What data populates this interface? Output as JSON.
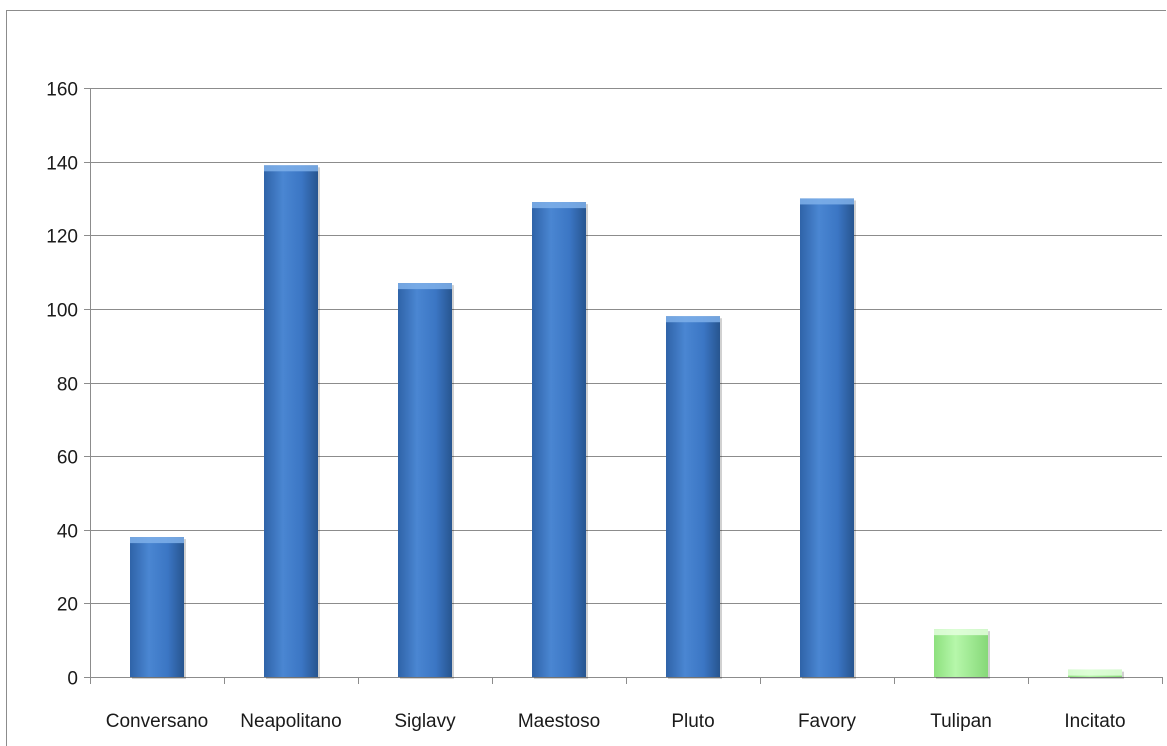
{
  "chart_data": {
    "type": "bar",
    "title": "",
    "xlabel": "",
    "ylabel": "",
    "categories": [
      "Conversano",
      "Neapolitano",
      "Siglavy",
      "Maestoso",
      "Pluto",
      "Favory",
      "Tulipan",
      "Incitato"
    ],
    "values": [
      38,
      139,
      107,
      129,
      98,
      130,
      13,
      2
    ],
    "bar_colors": [
      "blue",
      "blue",
      "blue",
      "blue",
      "blue",
      "blue",
      "green",
      "green"
    ],
    "ylim": [
      0,
      160
    ],
    "yticks": [
      0,
      20,
      40,
      60,
      80,
      100,
      120,
      140,
      160
    ],
    "grid": true,
    "legend": "none"
  },
  "colors": {
    "blue_top": "#6fa3e0",
    "blue_mid": "#3d7ac8",
    "blue_bottom": "#2b5c9e",
    "green_top": "#d8ffd0",
    "green_mid": "#a8f29a",
    "green_bottom": "#86de78",
    "grid": "#8c8c8c",
    "axis": "#8c8c8c"
  }
}
